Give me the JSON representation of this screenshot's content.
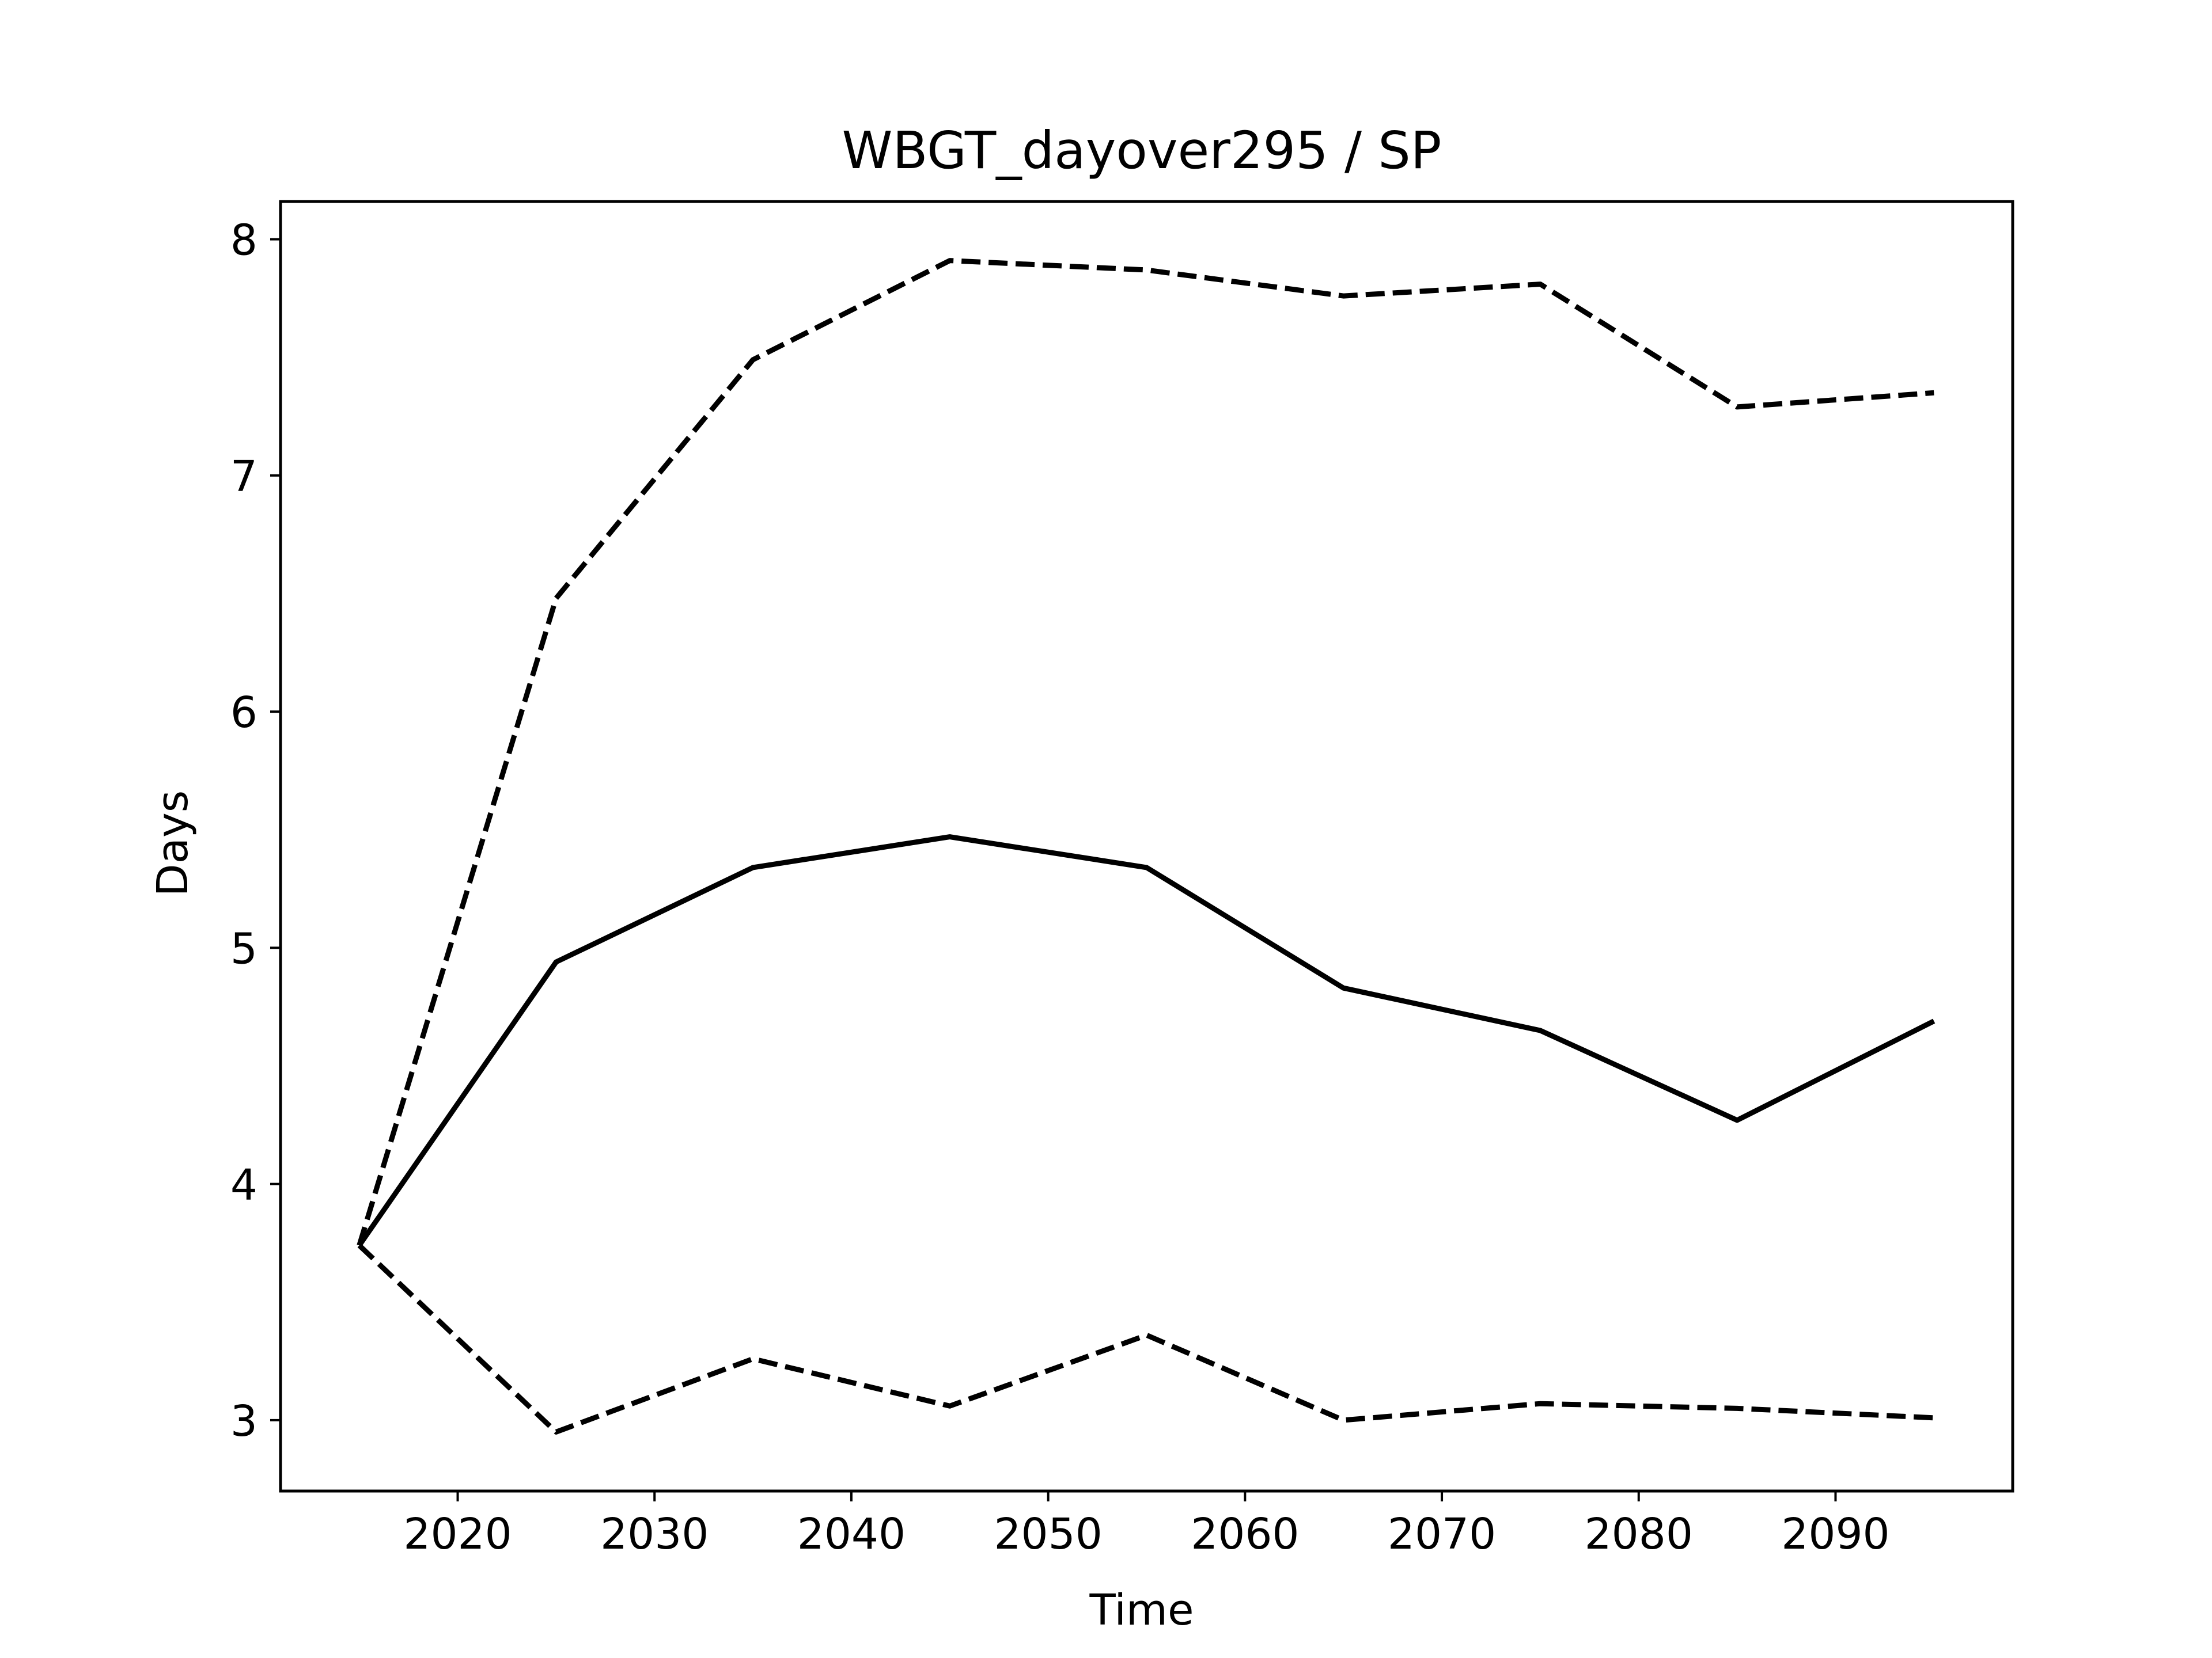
{
  "chart_data": {
    "type": "line",
    "title": "WBGT_dayover295 / SP",
    "xlabel": "Time",
    "ylabel": "Days",
    "xlim": [
      2011,
      2099
    ],
    "ylim": [
      2.7,
      8.16
    ],
    "xticks": [
      2020,
      2030,
      2040,
      2050,
      2060,
      2070,
      2080,
      2090
    ],
    "yticks": [
      3,
      4,
      5,
      6,
      7,
      8
    ],
    "grid": false,
    "x": [
      2015,
      2025,
      2035,
      2045,
      2055,
      2065,
      2075,
      2085,
      2095
    ],
    "series": [
      {
        "style": "solid",
        "color": "#000000",
        "values": [
          3.74,
          4.94,
          5.34,
          5.47,
          5.34,
          4.83,
          4.65,
          4.27,
          4.69
        ]
      },
      {
        "style": "dashed",
        "color": "#000000",
        "values": [
          3.74,
          6.48,
          7.49,
          7.91,
          7.87,
          7.76,
          7.81,
          7.29,
          7.35
        ]
      },
      {
        "style": "dashed",
        "color": "#000000",
        "values": [
          3.74,
          2.95,
          3.26,
          3.06,
          3.36,
          3.0,
          3.07,
          3.05,
          3.01
        ]
      }
    ]
  }
}
